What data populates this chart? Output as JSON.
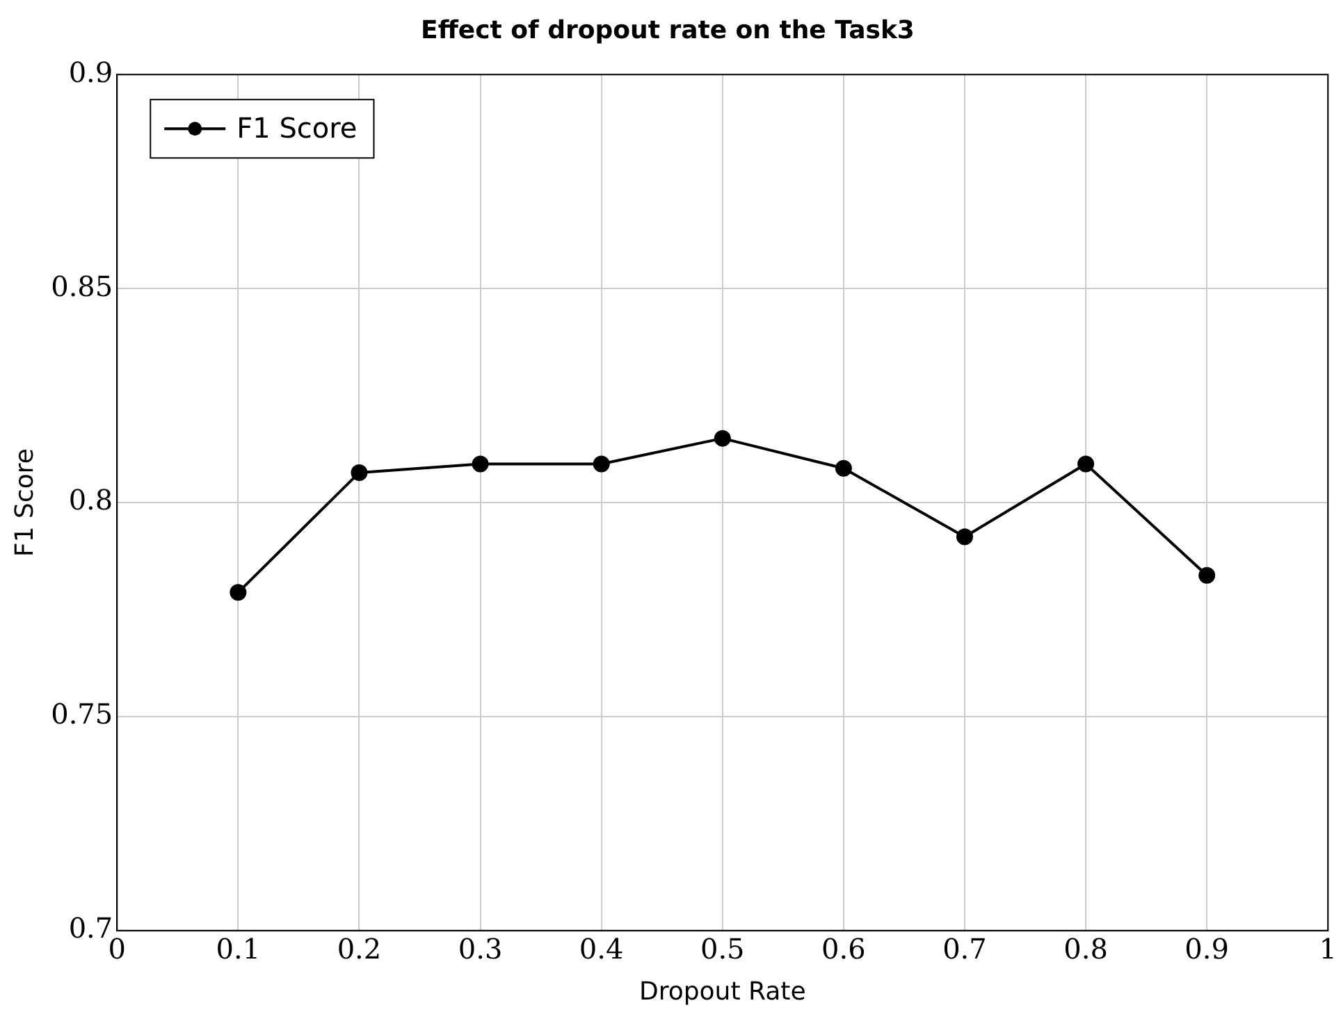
{
  "chart_data": {
    "type": "line",
    "title": "Effect of dropout rate on the Task3",
    "xlabel": "Dropout Rate",
    "ylabel": "F1 Score",
    "x": [
      0.1,
      0.2,
      0.3,
      0.4,
      0.5,
      0.6,
      0.7,
      0.8,
      0.9
    ],
    "series": [
      {
        "name": "F1 Score",
        "color": "#000000",
        "values": [
          0.779,
          0.807,
          0.809,
          0.809,
          0.815,
          0.808,
          0.792,
          0.809,
          0.783
        ]
      }
    ],
    "xlim": [
      0,
      1
    ],
    "xticks": [
      0,
      0.1,
      0.2,
      0.3,
      0.4,
      0.5,
      0.6,
      0.7,
      0.8,
      0.9,
      1
    ],
    "ylim": [
      0.7,
      0.9
    ],
    "yticks": [
      0.7,
      0.75,
      0.8,
      0.85,
      0.9
    ],
    "grid": true,
    "legend": "top left",
    "marker": "circle",
    "line_style": "solid"
  }
}
